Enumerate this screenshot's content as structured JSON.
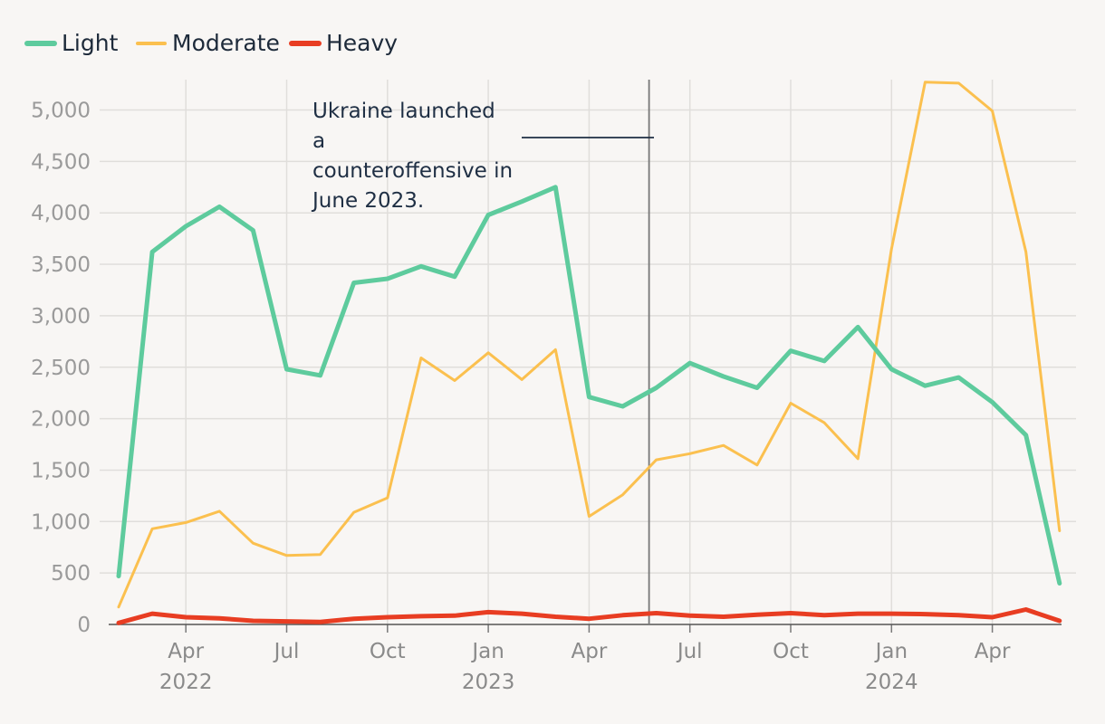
{
  "chart_data": {
    "type": "line",
    "title": "",
    "xlabel": "",
    "ylabel": "",
    "x": [
      "2022-02",
      "2022-03",
      "2022-04",
      "2022-05",
      "2022-06",
      "2022-07",
      "2022-08",
      "2022-09",
      "2022-10",
      "2022-11",
      "2022-12",
      "2023-01",
      "2023-02",
      "2023-03",
      "2023-04",
      "2023-05",
      "2023-06",
      "2023-07",
      "2023-08",
      "2023-09",
      "2023-10",
      "2023-11",
      "2023-12",
      "2024-01",
      "2024-02",
      "2024-03",
      "2024-04",
      "2024-05",
      "2024-06"
    ],
    "ylim": [
      0,
      5250
    ],
    "yticks": [
      0,
      500,
      1000,
      1500,
      2000,
      2500,
      3000,
      3500,
      4000,
      4500,
      5000
    ],
    "ytick_labels": [
      "0",
      "500",
      "1,000",
      "1,500",
      "2,000",
      "2,500",
      "3,000",
      "3,500",
      "4,000",
      "4,500",
      "5,000"
    ],
    "xticks": [
      {
        "index": 2,
        "label": "Apr",
        "year": "2022"
      },
      {
        "index": 5,
        "label": "Jul",
        "year": ""
      },
      {
        "index": 8,
        "label": "Oct",
        "year": ""
      },
      {
        "index": 11,
        "label": "Jan",
        "year": "2023"
      },
      {
        "index": 14,
        "label": "Apr",
        "year": ""
      },
      {
        "index": 17,
        "label": "Jul",
        "year": ""
      },
      {
        "index": 20,
        "label": "Oct",
        "year": ""
      },
      {
        "index": 23,
        "label": "Jan",
        "year": "2024"
      },
      {
        "index": 26,
        "label": "Apr",
        "year": ""
      }
    ],
    "legend_position": "top-left",
    "series": [
      {
        "name": "Light",
        "color": "#5ecb9d",
        "width": 5,
        "values": [
          470,
          3620,
          3870,
          4060,
          3830,
          2480,
          2420,
          3320,
          3360,
          3480,
          3380,
          3980,
          4110,
          4250,
          2210,
          2120,
          2300,
          2540,
          2410,
          2300,
          2660,
          2560,
          2890,
          2480,
          2320,
          2400,
          2160,
          1840,
          400
        ]
      },
      {
        "name": "Moderate",
        "color": "#fbc04f",
        "width": 3,
        "values": [
          170,
          930,
          990,
          1100,
          790,
          670,
          680,
          1090,
          1230,
          2590,
          2370,
          2640,
          2380,
          2670,
          1050,
          1260,
          1600,
          1660,
          1740,
          1550,
          2150,
          1960,
          1610,
          3650,
          5270,
          5260,
          4990,
          3620,
          910
        ]
      },
      {
        "name": "Heavy",
        "color": "#e83d22",
        "width": 5,
        "values": [
          15,
          105,
          70,
          60,
          35,
          30,
          25,
          55,
          70,
          80,
          85,
          120,
          105,
          75,
          55,
          90,
          110,
          85,
          75,
          95,
          110,
          90,
          105,
          105,
          100,
          90,
          70,
          145,
          35
        ]
      }
    ],
    "annotations": [
      {
        "text": [
          "Ukraine launched",
          "a",
          "counteroffensive in",
          "June 2023."
        ],
        "at_index": 16
      }
    ]
  }
}
